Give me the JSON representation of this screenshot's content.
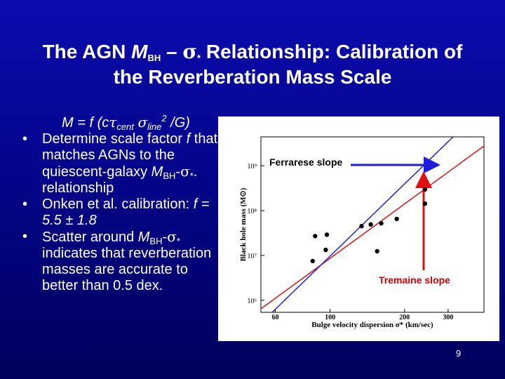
{
  "slide": {
    "title": {
      "line1": [
        "The AGN ",
        "M",
        "BH",
        " – ",
        "σ",
        "*",
        " Relationship: Calibration of"
      ],
      "line2": "the Reverberation Mass Scale"
    },
    "formula": [
      "M = f (c",
      "τ",
      "cent",
      " ",
      "σ",
      "line",
      "2",
      " /G)"
    ],
    "bullets": [
      [
        "Determine scale factor ",
        "f",
        "  that matches AGNs to the quiescent-galaxy ",
        "M",
        "BH",
        "-",
        "σ",
        "*",
        ". relationship"
      ],
      [
        "Onken et al. calibration: ",
        "f = 5.5 ± 1.8"
      ],
      [
        "Scatter around ",
        "M",
        "BH",
        "-",
        "σ",
        "*",
        " indicates that reverberation masses are accurate to better than 0.5 dex."
      ]
    ],
    "page_number": "9"
  },
  "figure": {
    "type": "scatter",
    "xlabel": "Bulge velocity dispersion σ* (km/sec)",
    "ylabel": "Black hole mass (M⊙)",
    "log_x": true,
    "log_y": true,
    "xlim": [
      52.5,
      419
    ],
    "ylim": [
      540000,
      4400000000
    ],
    "xticks": [
      60,
      100,
      200,
      300
    ],
    "yticks": [
      {
        "value": 1000000,
        "label": "10⁶"
      },
      {
        "value": 10000000,
        "label": "10⁷"
      },
      {
        "value": 100000000,
        "label": "10⁸"
      },
      {
        "value": 1000000000,
        "label": "10⁹"
      }
    ],
    "x": [
      242,
      242,
      186,
      161,
      146,
      134,
      97,
      87,
      96,
      155,
      85
    ],
    "values": [
      295000000,
      143000000,
      65000000,
      52000000,
      49000000,
      45000000,
      29000000,
      27000000,
      13300000,
      12400000,
      7500000
    ],
    "color": "#000000",
    "annotations": {
      "ferrarese": "Ferrarese slope",
      "tremaine": "Tremaine slope"
    }
  }
}
